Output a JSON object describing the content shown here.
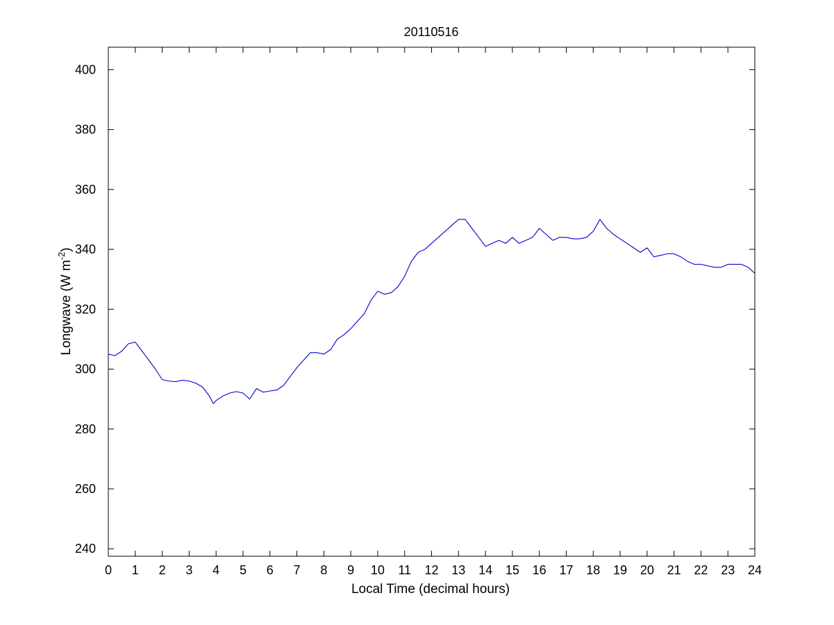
{
  "chart_data": {
    "type": "line",
    "title": "20110516",
    "xlabel": "Local Time (decimal hours)",
    "ylabel": "Longwave (W m",
    "ylabel_exponent": "-2",
    "ylabel_close": ")",
    "xlim": [
      0,
      24
    ],
    "ylim": [
      237.5,
      407.5
    ],
    "xticks": [
      0,
      1,
      2,
      3,
      4,
      5,
      6,
      7,
      8,
      9,
      10,
      11,
      12,
      13,
      14,
      15,
      16,
      17,
      18,
      19,
      20,
      21,
      22,
      23,
      24
    ],
    "yticks": [
      240,
      260,
      280,
      300,
      320,
      340,
      360,
      380,
      400
    ],
    "grid": false,
    "legend": "none",
    "line_color": "#0000cc",
    "series": [
      {
        "x": [
          0,
          0.25,
          0.5,
          0.75,
          1,
          1.25,
          1.5,
          1.75,
          2,
          2.25,
          2.5,
          2.75,
          3,
          3.25,
          3.5,
          3.75,
          3.9,
          4,
          4.25,
          4.5,
          4.75,
          5,
          5.25,
          5.5,
          5.75,
          6,
          6.25,
          6.5,
          6.75,
          7,
          7.25,
          7.5,
          7.75,
          8,
          8.25,
          8.5,
          8.75,
          9,
          9.25,
          9.5,
          9.75,
          10,
          10.25,
          10.5,
          10.75,
          11,
          11.25,
          11.5,
          11.75,
          12,
          12.25,
          12.5,
          12.75,
          13,
          13.25,
          13.5,
          13.75,
          14,
          14.25,
          14.5,
          14.75,
          15,
          15.25,
          15.5,
          15.75,
          16,
          16.25,
          16.5,
          16.75,
          17,
          17.25,
          17.5,
          17.75,
          18,
          18.25,
          18.5,
          18.75,
          19,
          19.25,
          19.5,
          19.75,
          20,
          20.25,
          20.5,
          20.75,
          21,
          21.25,
          21.5,
          21.75,
          22,
          22.25,
          22.5,
          22.75,
          23,
          23.25,
          23.5,
          23.75,
          24
        ],
        "values": [
          305,
          304.5,
          306,
          308.5,
          309,
          306,
          303,
          300,
          296.5,
          296,
          295.8,
          296.3,
          296,
          295.3,
          294,
          291,
          288.5,
          289.5,
          291,
          292,
          292.5,
          292,
          290,
          293.5,
          292.3,
          292.7,
          293,
          294.5,
          297.5,
          300.5,
          303,
          305.5,
          305.5,
          305,
          306.5,
          310,
          311.5,
          313.5,
          316,
          318.5,
          323,
          326,
          325,
          325.5,
          327.5,
          331,
          336,
          339,
          340,
          342,
          344,
          346,
          348,
          350,
          350,
          347,
          344,
          341,
          342,
          343,
          342,
          344,
          342,
          343,
          344,
          347,
          345,
          343,
          344,
          344,
          343.5,
          343.5,
          344,
          346,
          350,
          347,
          345,
          343.5,
          342,
          340.5,
          339,
          340.5,
          337.5,
          338,
          338.5,
          338.5,
          337.5,
          336,
          335,
          335,
          334.5,
          334,
          334,
          335,
          335,
          335,
          334,
          332
        ]
      }
    ]
  }
}
